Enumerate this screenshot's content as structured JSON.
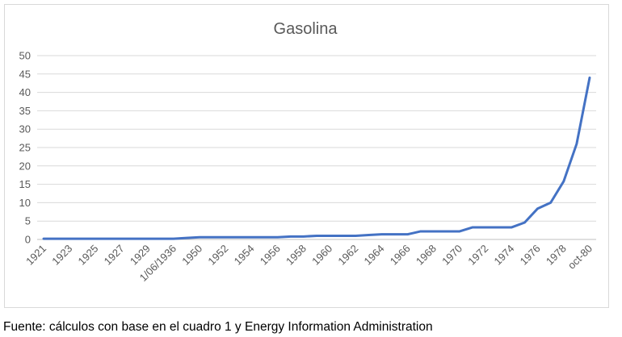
{
  "caption": "Fuente: cálculos con base en el cuadro 1 y Energy Information Administration",
  "chart_data": {
    "type": "line",
    "title": "Gasolina",
    "xlabel": "",
    "ylabel": "",
    "ylim": [
      0,
      50
    ],
    "yticks": [
      0,
      5,
      10,
      15,
      20,
      25,
      30,
      35,
      40,
      45,
      50
    ],
    "grid": true,
    "legend": "none",
    "line_color": "#4472c4",
    "x": [
      "1921",
      "",
      "1923",
      "",
      "1925",
      "",
      "1927",
      "",
      "1929",
      "",
      "1/06/1936",
      "",
      "1950",
      "",
      "1952",
      "",
      "1954",
      "",
      "1956",
      "",
      "1958",
      "",
      "1960",
      "",
      "1962",
      "",
      "1964",
      "",
      "1966",
      "",
      "1968",
      "",
      "1970",
      "",
      "1972",
      "",
      "1974",
      "",
      "1976",
      "",
      "1978",
      "",
      "oct-80"
    ],
    "series": [
      {
        "values": [
          0.2,
          0.2,
          0.2,
          0.2,
          0.2,
          0.2,
          0.2,
          0.2,
          0.2,
          0.2,
          0.2,
          0.4,
          0.6,
          0.6,
          0.6,
          0.6,
          0.6,
          0.6,
          0.6,
          0.8,
          0.8,
          1.0,
          1.0,
          1.0,
          1.0,
          1.2,
          1.4,
          1.4,
          1.4,
          2.2,
          2.2,
          2.2,
          2.2,
          3.3,
          3.3,
          3.3,
          3.3,
          4.6,
          8.4,
          10.0,
          15.8,
          26.0,
          44.0
        ]
      }
    ]
  }
}
